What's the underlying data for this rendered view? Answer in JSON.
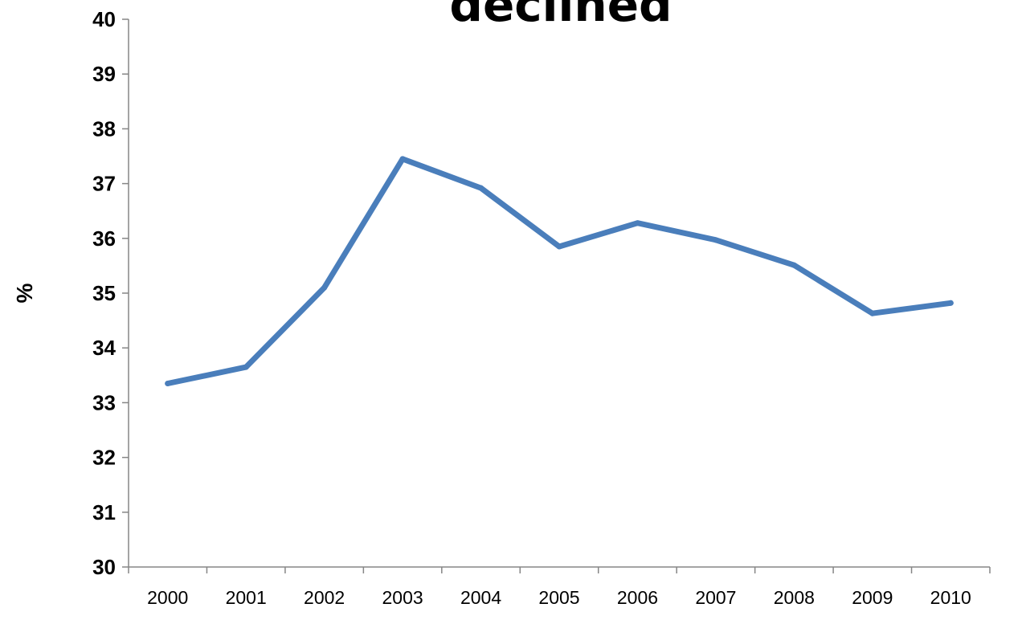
{
  "chart_data": {
    "type": "line",
    "title": "declined",
    "ylabel": "%",
    "xlabel": "",
    "x": [
      "2000",
      "2001",
      "2002",
      "2003",
      "2004",
      "2005",
      "2006",
      "2007",
      "2008",
      "2009",
      "2010"
    ],
    "series": [
      {
        "values": [
          33.35,
          33.65,
          35.1,
          37.45,
          36.92,
          35.85,
          36.28,
          35.97,
          35.51,
          34.63,
          34.82
        ]
      }
    ],
    "ylim": [
      30,
      40
    ],
    "yticks": [
      30,
      31,
      32,
      33,
      34,
      35,
      36,
      37,
      38,
      39,
      40
    ],
    "grid": false,
    "colors": {
      "line": "#4a7ebb",
      "axis": "#868686"
    }
  }
}
